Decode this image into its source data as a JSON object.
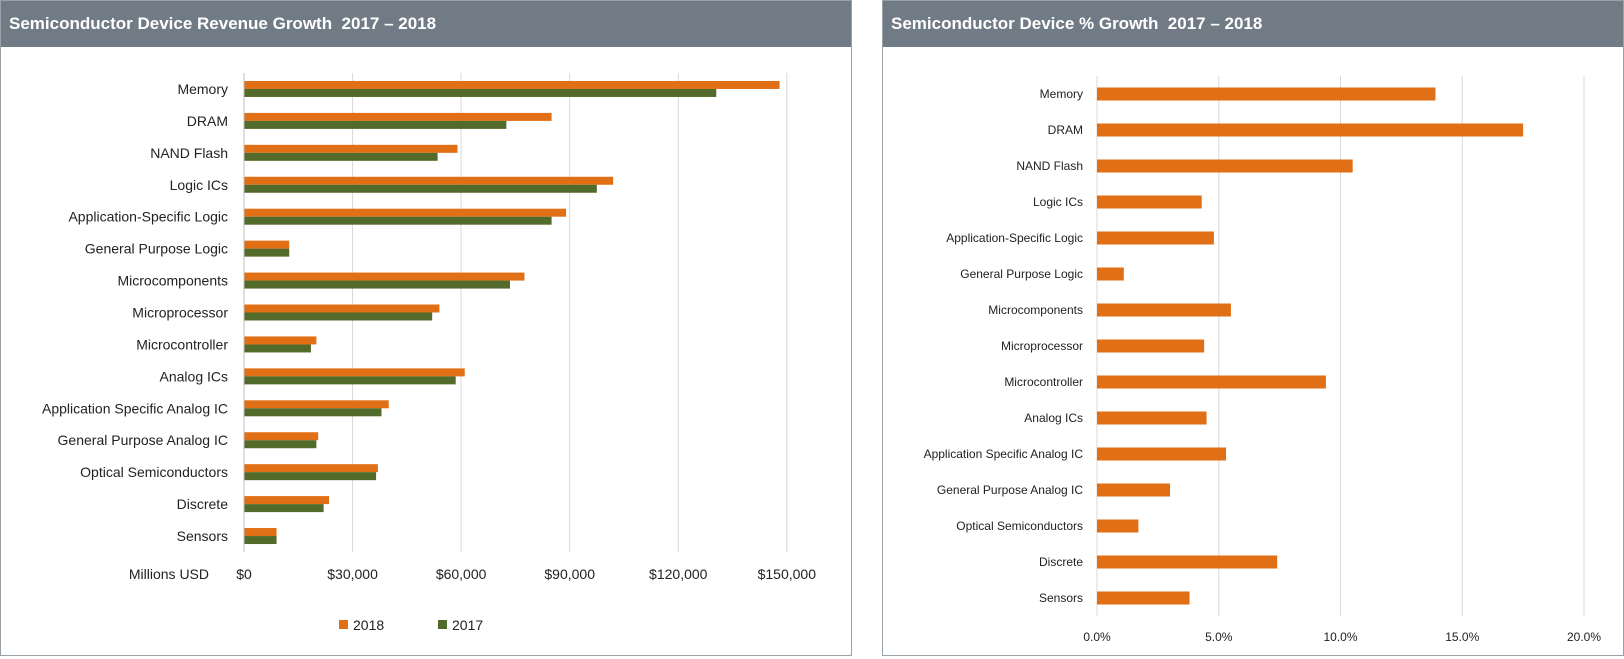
{
  "colors": {
    "y2018": "#e06f15",
    "y2017": "#536b2a",
    "gridline": "#d9d9d9",
    "header_bg": "#707b85"
  },
  "chart_data": [
    {
      "type": "bar",
      "orientation": "horizontal",
      "title": "Semiconductor Device Revenue Growth  2017 – 2018",
      "xlabel": "Millions USD",
      "categories": [
        "Memory",
        "DRAM",
        "NAND Flash",
        "Logic ICs",
        "Application-Specific Logic",
        "General Purpose Logic",
        "Microcomponents",
        "Microprocessor",
        "Microcontroller",
        "Analog ICs",
        "Application Specific Analog IC",
        "General Purpose Analog IC",
        "Optical Semiconductors",
        "Discrete",
        "Sensors"
      ],
      "series": [
        {
          "name": "2018",
          "values": [
            148000,
            85000,
            59000,
            102000,
            89000,
            12500,
            77500,
            54000,
            20000,
            61000,
            40000,
            20500,
            37000,
            23500,
            9000
          ]
        },
        {
          "name": "2017",
          "values": [
            130500,
            72500,
            53500,
            97500,
            85000,
            12500,
            73500,
            52000,
            18500,
            58500,
            38000,
            20000,
            36500,
            22000,
            9000
          ]
        }
      ],
      "xlim": [
        0,
        160000
      ],
      "xticks": [
        0,
        30000,
        60000,
        90000,
        120000,
        150000
      ],
      "xtick_labels": [
        "$0",
        "$30,000",
        "$60,000",
        "$90,000",
        "$120,000",
        "$150,000"
      ],
      "grid": true,
      "legend": {
        "position": "bottom",
        "entries": [
          "2018",
          "2017"
        ]
      }
    },
    {
      "type": "bar",
      "orientation": "horizontal",
      "title": "Semiconductor Device % Growth  2017 – 2018",
      "categories": [
        "Memory",
        "DRAM",
        "NAND Flash",
        "Logic ICs",
        "Application-Specific Logic",
        "General Purpose Logic",
        "Microcomponents",
        "Microprocessor",
        "Microcontroller",
        "Analog ICs",
        "Application Specific Analog IC",
        "General Purpose Analog IC",
        "Optical Semiconductors",
        "Discrete",
        "Sensors"
      ],
      "series": [
        {
          "values": [
            13.9,
            17.5,
            10.5,
            4.3,
            4.8,
            1.1,
            5.5,
            4.4,
            9.4,
            4.5,
            5.3,
            3.0,
            1.7,
            7.4,
            3.8
          ]
        }
      ],
      "xlim": [
        0,
        20
      ],
      "xticks": [
        0,
        5,
        10,
        15,
        20
      ],
      "xtick_labels": [
        "0.0%",
        "5.0%",
        "10.0%",
        "15.0%",
        "20.0%"
      ],
      "grid": true
    }
  ]
}
